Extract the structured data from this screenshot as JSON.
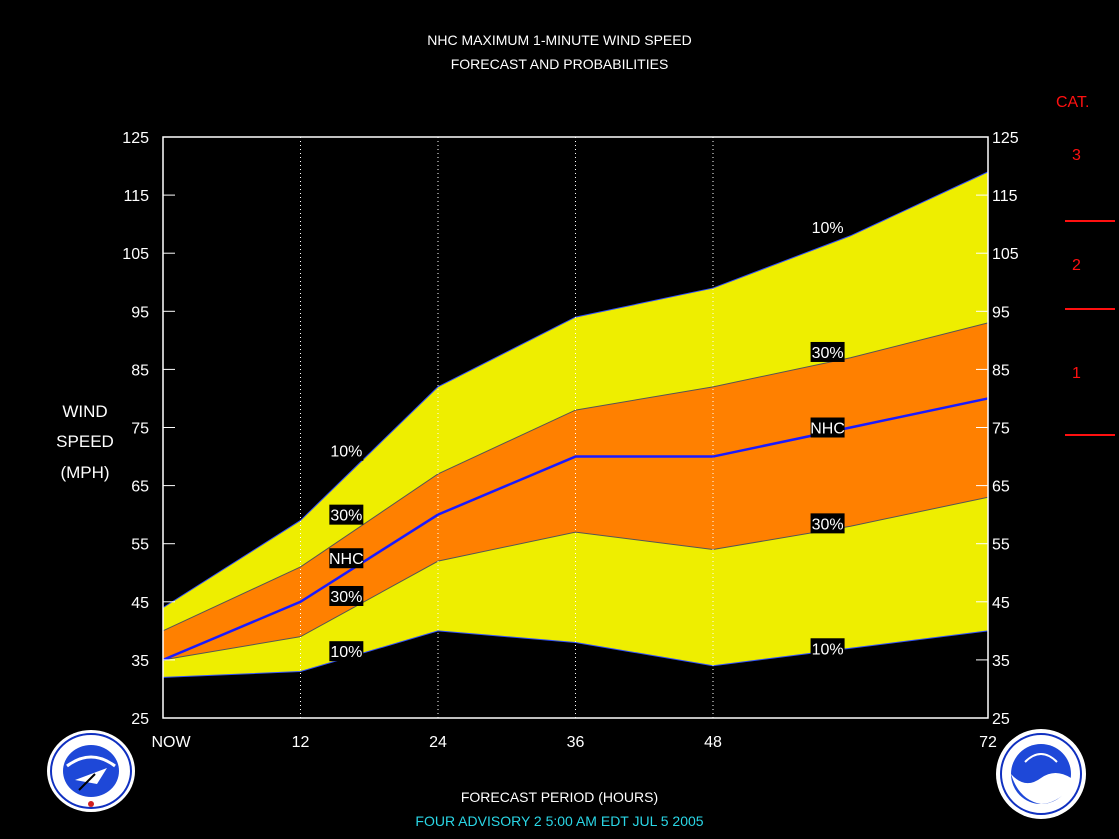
{
  "titles": {
    "line1": "NHC MAXIMUM 1-MINUTE WIND SPEED",
    "line2": "FORECAST AND PROBABILITIES"
  },
  "ylabel": {
    "line1": "WIND",
    "line2": "SPEED",
    "line3": "(MPH)"
  },
  "xlabel": "FORECAST PERIOD (HOURS)",
  "advisory": "FOUR   ADVISORY  2 5:00 AM  EDT  JUL  5  2005",
  "category_scale": {
    "title": "CAT.",
    "labels": [
      "3",
      "2",
      "1"
    ],
    "color": "#ff1010"
  },
  "colors": {
    "band_10": "#eeee00",
    "band_30": "#ff8000",
    "nhc_line": "#1a1aff",
    "frame": "#ffffff"
  },
  "logos": {
    "left": "nws-logo",
    "right": "noaa-logo"
  },
  "chart_data": {
    "type": "area",
    "x": [
      0,
      12,
      24,
      36,
      48,
      60,
      72
    ],
    "xtick_labels": [
      "NOW",
      "12",
      "24",
      "36",
      "48",
      "72"
    ],
    "xtick_values": [
      0,
      12,
      24,
      36,
      48,
      72
    ],
    "xlim": [
      0,
      72
    ],
    "ylim": [
      25,
      125
    ],
    "yticks": [
      25,
      35,
      45,
      55,
      65,
      75,
      85,
      95,
      105,
      115,
      125
    ],
    "grid_x": true,
    "series": [
      {
        "name": "10%",
        "role": "upper10",
        "values": [
          44,
          59,
          82,
          94,
          99,
          108,
          119
        ]
      },
      {
        "name": "30%",
        "role": "upper30",
        "values": [
          40,
          51,
          67,
          78,
          82,
          87,
          93
        ]
      },
      {
        "name": "NHC",
        "role": "nhc",
        "values": [
          35,
          45,
          60,
          70,
          70,
          75,
          80
        ]
      },
      {
        "name": "30%",
        "role": "lower30",
        "values": [
          35,
          39,
          52,
          57,
          54,
          58,
          63
        ]
      },
      {
        "name": "10%",
        "role": "lower10",
        "values": [
          32,
          33,
          40,
          38,
          34,
          37,
          40
        ]
      }
    ],
    "labels": [
      {
        "text": "10%",
        "x": 16,
        "y": 71
      },
      {
        "text": "30%",
        "x": 16,
        "y": 60
      },
      {
        "text": "NHC",
        "x": 16,
        "y": 52.5
      },
      {
        "text": "30%",
        "x": 16,
        "y": 46
      },
      {
        "text": "10%",
        "x": 16,
        "y": 36.5
      },
      {
        "text": "10%",
        "x": 58,
        "y": 109.5
      },
      {
        "text": "30%",
        "x": 58,
        "y": 88
      },
      {
        "text": "NHC",
        "x": 58,
        "y": 75
      },
      {
        "text": "30%",
        "x": 58,
        "y": 58.5
      },
      {
        "text": "10%",
        "x": 58,
        "y": 37
      }
    ]
  }
}
